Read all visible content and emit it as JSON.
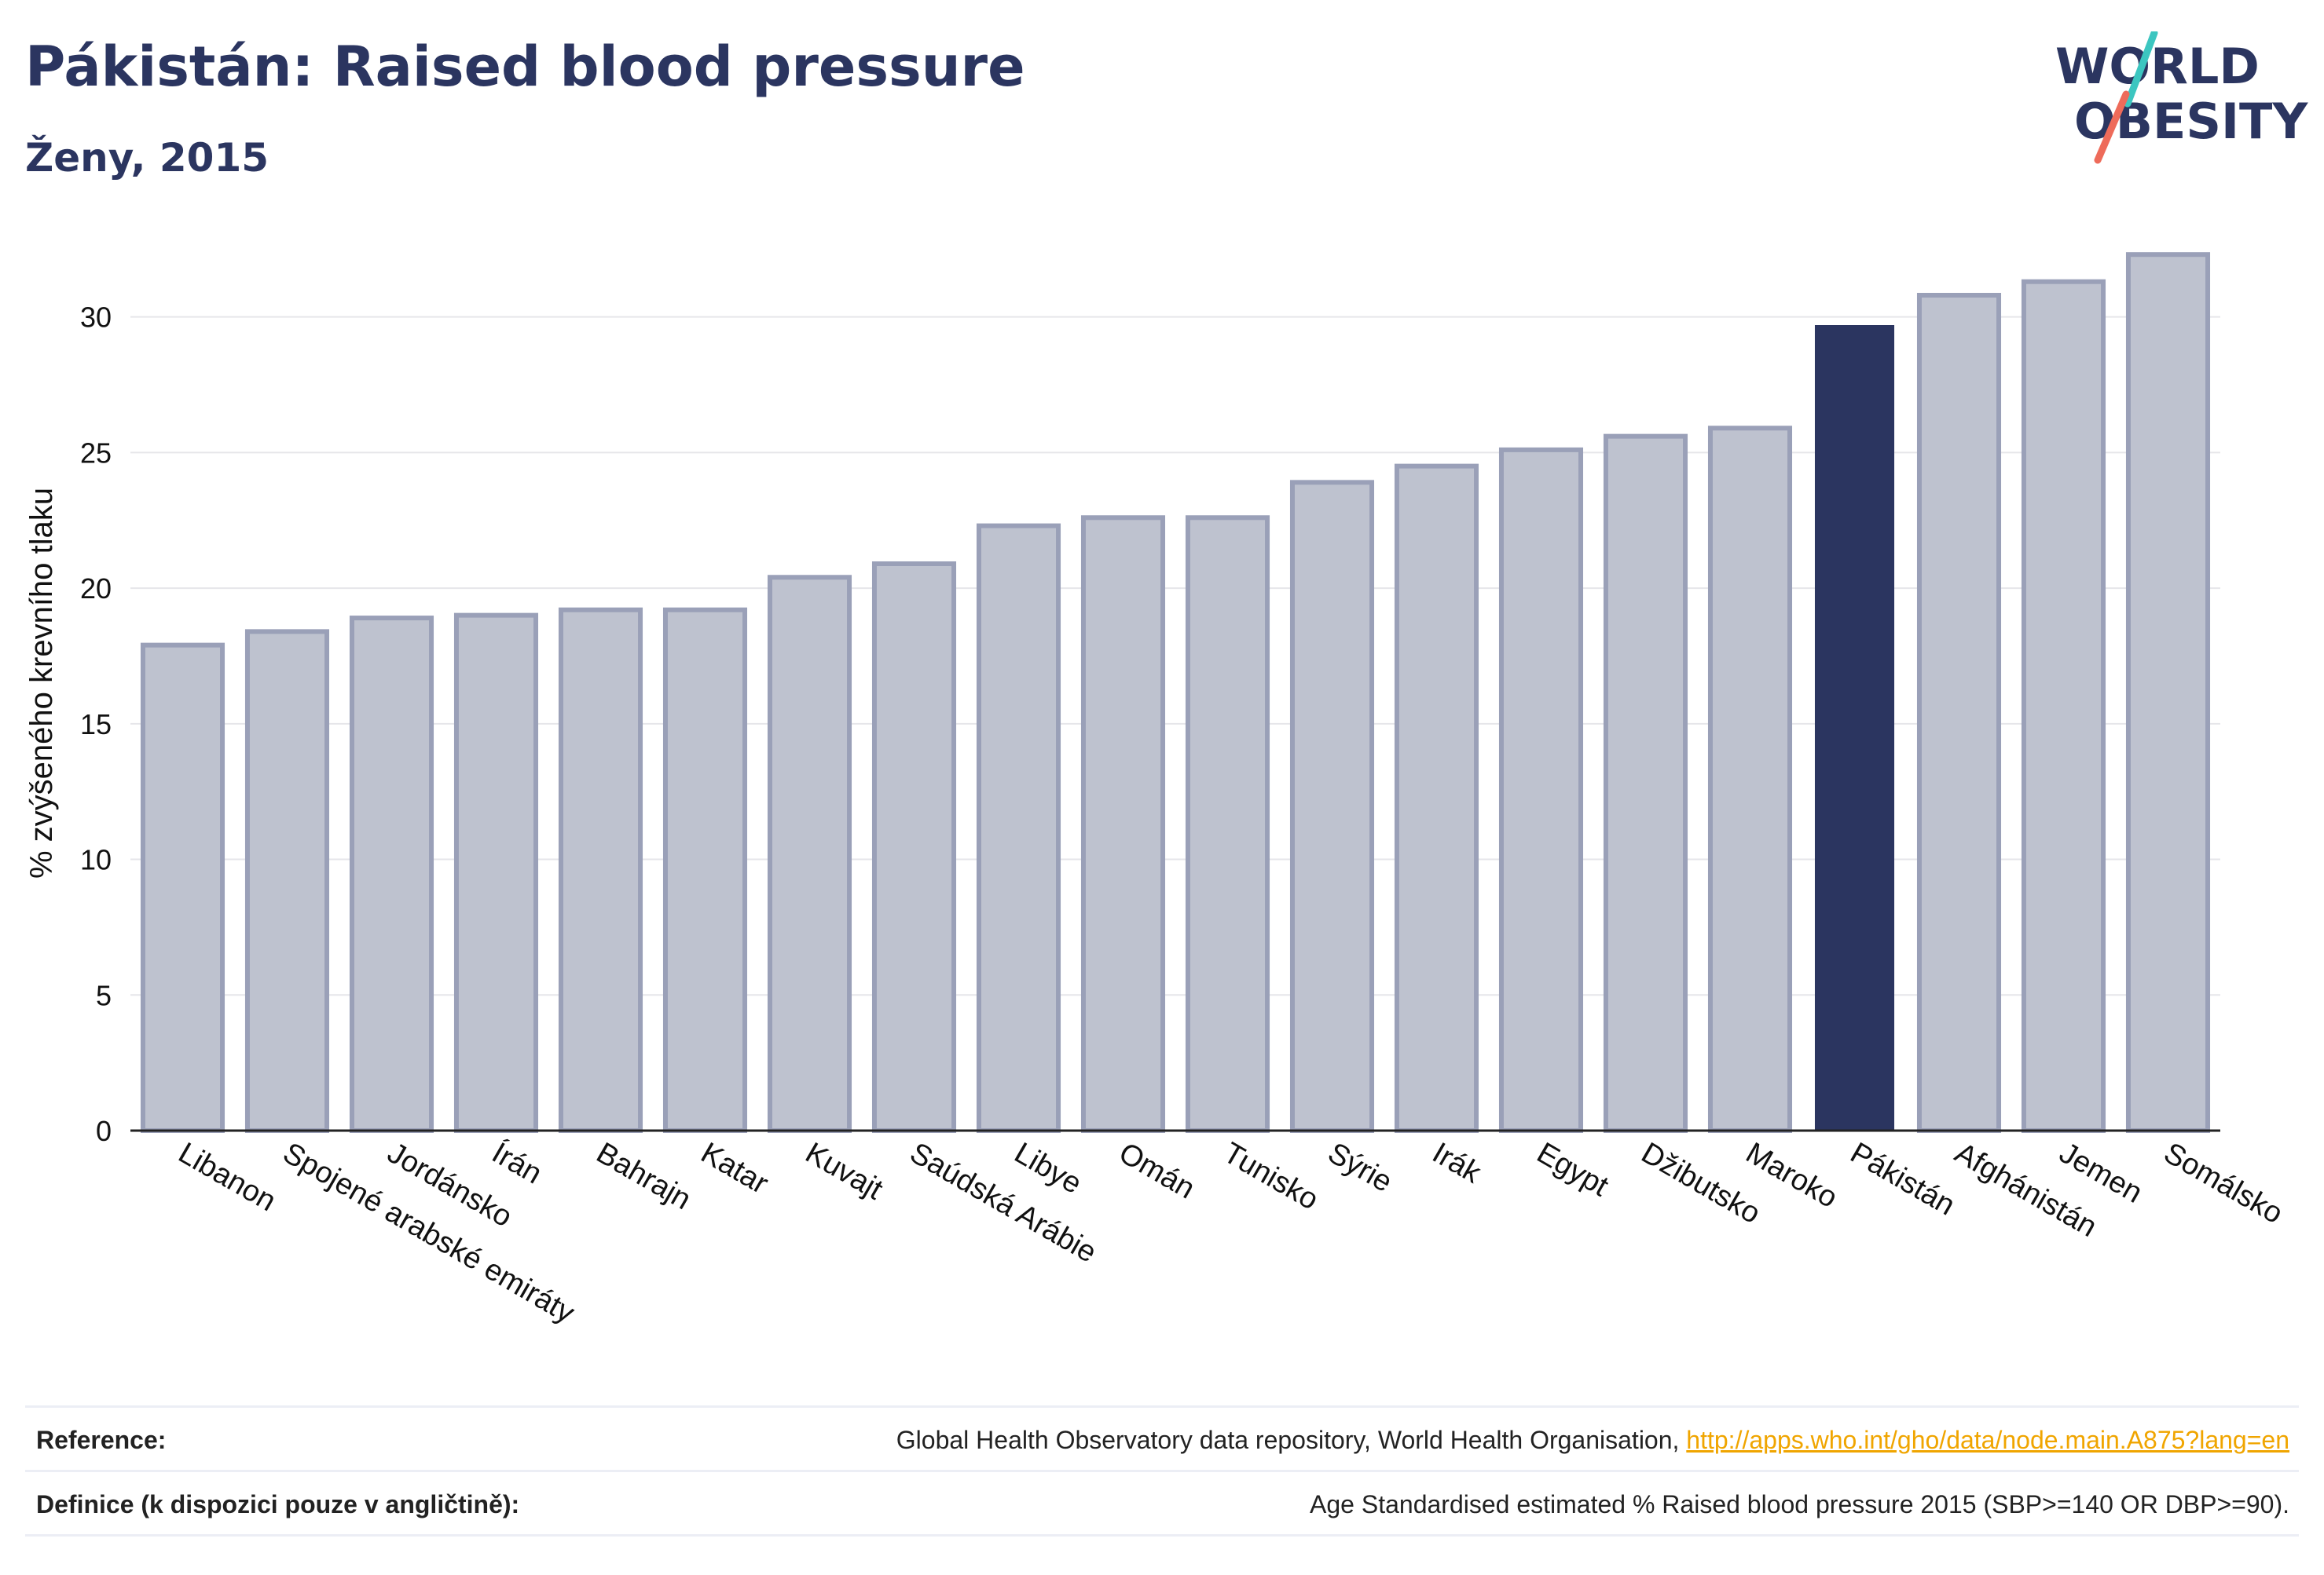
{
  "header": {
    "title": "Pákistán: Raised blood pressure",
    "subtitle": "Ženy, 2015"
  },
  "logo": {
    "line1": "WORLD",
    "line2": "OBESITY"
  },
  "colors": {
    "highlight": "#2b3560",
    "bar_fill": "#bec2cf",
    "bar_stroke": "#9aa0b8",
    "grid": "#e6e6ea",
    "logo_teal": "#3cc6c0",
    "logo_coral": "#ee6b5a"
  },
  "chart_data": {
    "type": "bar",
    "ylabel": "% zvýšeného krevního tlaku",
    "xlabel": "",
    "ylim": [
      0,
      33
    ],
    "yticks": [
      0,
      5,
      10,
      15,
      20,
      25,
      30
    ],
    "grid": true,
    "highlight": "Pákistán",
    "categories": [
      "Libanon",
      "Spojené arabské emiráty",
      "Jordánsko",
      "Írán",
      "Bahrajn",
      "Katar",
      "Kuvajt",
      "Saúdská Arábie",
      "Libye",
      "Omán",
      "Tunisko",
      "Sýrie",
      "Irák",
      "Egypt",
      "Džibutsko",
      "Maroko",
      "Pákistán",
      "Afghánistán",
      "Jemen",
      "Somálsko"
    ],
    "values": [
      17.9,
      18.4,
      18.9,
      19.0,
      19.2,
      19.2,
      20.4,
      20.9,
      22.3,
      22.6,
      22.6,
      23.9,
      24.5,
      25.1,
      25.6,
      25.9,
      29.7,
      30.8,
      31.3,
      32.3
    ]
  },
  "footer": {
    "reference_label": "Reference:",
    "reference_text": "Global Health Observatory data repository, World Health Organisation,",
    "reference_link": "http://apps.who.int/gho/data/node.main.A875?lang=en",
    "definition_label": "Definice (k dispozici pouze v angličtině):",
    "definition_text": "Age Standardised estimated % Raised blood pressure 2015 (SBP>=140 OR DBP>=90)."
  }
}
